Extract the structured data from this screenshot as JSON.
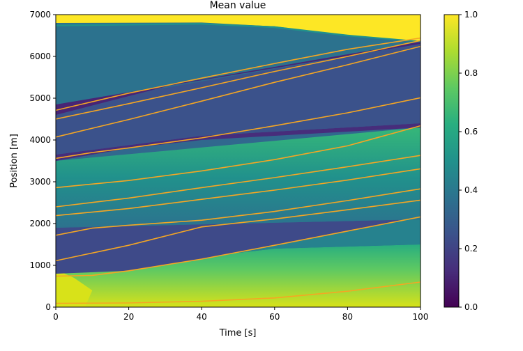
{
  "chart_data": {
    "type": "heatmap",
    "title": "Mean value",
    "xlabel": "Time [s]",
    "ylabel": "Position [m]",
    "xlim": [
      0,
      100
    ],
    "ylim": [
      0,
      7000
    ],
    "x_ticks": [
      0,
      20,
      40,
      60,
      80,
      100
    ],
    "x_tick_labels": [
      "0",
      "20",
      "40",
      "60",
      "80",
      "100"
    ],
    "y_ticks": [
      0,
      1000,
      2000,
      3000,
      4000,
      5000,
      6000,
      7000
    ],
    "y_tick_labels": [
      "0",
      "1000",
      "2000",
      "3000",
      "4000",
      "5000",
      "6000",
      "7000"
    ],
    "colorbar": {
      "min": 0,
      "max": 1,
      "ticks": [
        0,
        0.2,
        0.4,
        0.6,
        0.8,
        1.0
      ],
      "tick_labels": [
        "0.0",
        "0.2",
        "0.4",
        "0.6",
        "0.8",
        "1.0"
      ],
      "colormap": "viridis"
    },
    "trajectory_color": "#f5a623",
    "trajectories": [
      {
        "x": [
          0,
          20,
          40,
          60,
          80,
          100
        ],
        "y": [
          90,
          100,
          140,
          220,
          380,
          600
        ]
      },
      {
        "x": [
          0,
          10,
          20,
          40,
          60,
          80,
          100
        ],
        "y": [
          740,
          760,
          870,
          1150,
          1480,
          1820,
          2160
        ]
      },
      {
        "x": [
          0,
          20,
          40,
          60,
          80,
          100
        ],
        "y": [
          1110,
          1480,
          1920,
          2110,
          2330,
          2560
        ]
      },
      {
        "x": [
          0,
          10,
          20,
          40,
          60,
          80,
          100
        ],
        "y": [
          1720,
          1890,
          1960,
          2080,
          2290,
          2550,
          2830
        ]
      },
      {
        "x": [
          0,
          20,
          40,
          60,
          80,
          100
        ],
        "y": [
          2190,
          2360,
          2580,
          2800,
          3040,
          3310
        ]
      },
      {
        "x": [
          0,
          20,
          40,
          60,
          80,
          100
        ],
        "y": [
          2400,
          2610,
          2860,
          3100,
          3360,
          3630
        ]
      },
      {
        "x": [
          0,
          20,
          40,
          60,
          80,
          100
        ],
        "y": [
          2860,
          3030,
          3260,
          3530,
          3860,
          4340
        ]
      },
      {
        "x": [
          0,
          10,
          20,
          40,
          60,
          80,
          100
        ],
        "y": [
          3560,
          3700,
          3810,
          4050,
          4340,
          4650,
          5010
        ]
      },
      {
        "x": [
          0,
          20,
          40,
          60,
          80,
          100
        ],
        "y": [
          4070,
          4490,
          4930,
          5380,
          5800,
          6240
        ]
      },
      {
        "x": [
          0,
          20,
          40,
          60,
          80,
          100
        ],
        "y": [
          4500,
          4870,
          5250,
          5640,
          6000,
          6380
        ]
      },
      {
        "x": [
          0,
          20,
          40,
          60,
          80,
          100
        ],
        "y": [
          4710,
          5120,
          5480,
          5830,
          6170,
          6440
        ]
      }
    ]
  }
}
